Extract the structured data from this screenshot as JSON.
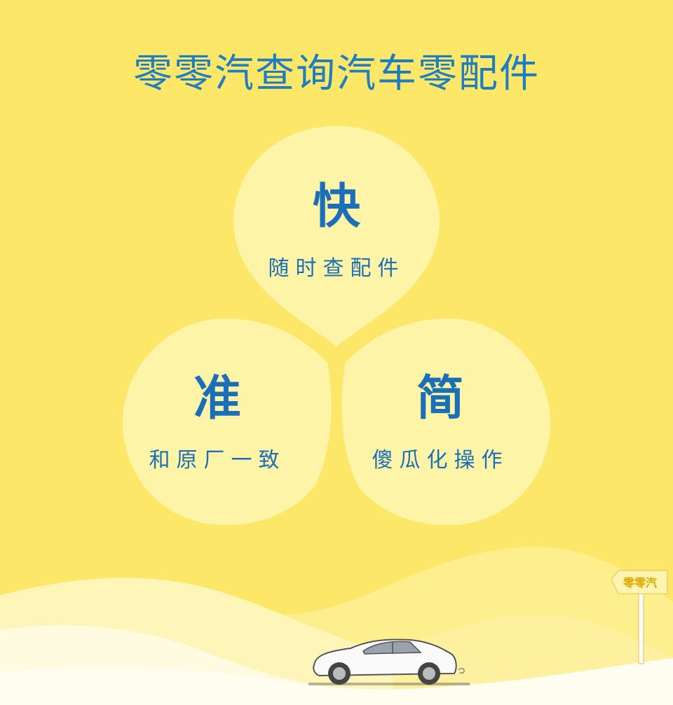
{
  "header": {
    "title": "零零汽查询汽车零配件"
  },
  "features": [
    {
      "headline": "快",
      "caption": "随时查配件"
    },
    {
      "headline": "准",
      "caption": "和原厂一致"
    },
    {
      "headline": "简",
      "caption": "傻瓜化操作"
    }
  ],
  "signpost": {
    "label": "零零汽"
  },
  "icons": {
    "car": "sports-car-illustration",
    "sign": "signpost-icon"
  },
  "colors": {
    "background": "#fde768",
    "petal": "#fef4a8",
    "title": "#1f7ec2",
    "text": "#1a6fb8"
  }
}
